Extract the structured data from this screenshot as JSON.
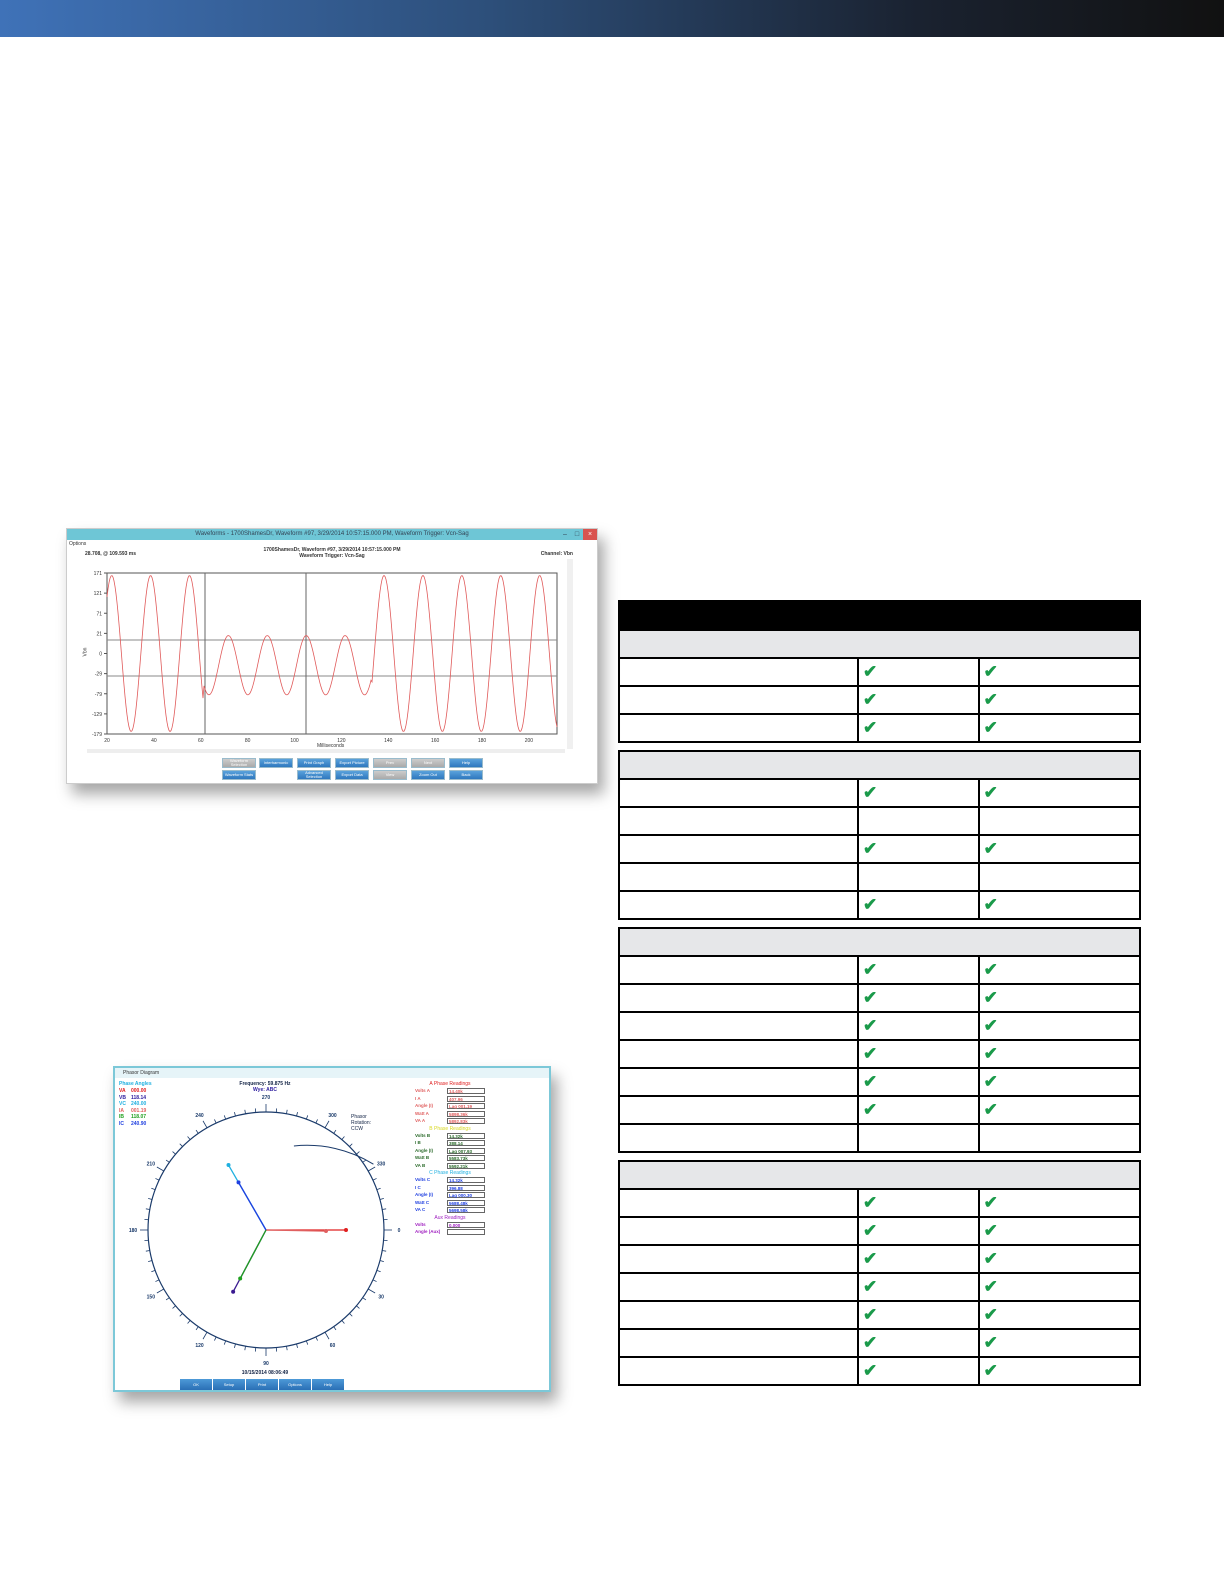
{
  "waveform_window": {
    "title": "Waveforms - 1700ShamesDr, Waveform #97, 3/29/2014 10:57:15.000 PM, Waveform Trigger: Vcn-Sag",
    "menu": "Options",
    "subtitle_line1": "1700ShamesDr, Waveform #97, 3/29/2014 10:57:15.000 PM",
    "subtitle_line2": "Waveform Trigger: Vcn-Sag",
    "cursor_readout": "28.708, @ 109.593 ms",
    "channel": "Channel: Vbn",
    "y_label": "Vbn",
    "x_label": "Milliseconds",
    "y_ticks": [
      "171",
      "121",
      "71",
      "21",
      "0",
      "-29",
      "-79",
      "-129",
      "-179"
    ],
    "x_ticks": [
      "20",
      "40",
      "60",
      "80",
      "100",
      "120",
      "140",
      "160",
      "180",
      "200"
    ],
    "line_color": "#e05a5a",
    "buttons": [
      "Waveform Selection",
      "Interharmonic",
      "Print Graph",
      "Export Picture",
      "Prev",
      "Next",
      "Help",
      "Waveform Stats",
      "Advanced Selection",
      "Export Data",
      "View",
      "Zoom Out",
      "Back"
    ]
  },
  "phasor_window": {
    "title": "Phasor Diagram",
    "frequency": "Frequency: 59.875 Hz",
    "config": "Wye: ABC",
    "phase_angles_title": "Phase Angles",
    "angles": [
      {
        "label": "VA",
        "value": "000.00",
        "color": "#e02020"
      },
      {
        "label": "VB",
        "value": "118.14",
        "color": "#3020a0"
      },
      {
        "label": "VC",
        "value": "240.00",
        "color": "#20b0e0"
      },
      {
        "label": "IA",
        "value": "001.19",
        "color": "#e06060"
      },
      {
        "label": "IB",
        "value": "118.07",
        "color": "#20a020"
      },
      {
        "label": "IC",
        "value": "240.90",
        "color": "#2040e0"
      }
    ],
    "rotation": "Phasor Rotation: CCW",
    "dial_labels": [
      "270",
      "300",
      "330",
      "0",
      "30",
      "60",
      "90",
      "120",
      "150",
      "180",
      "210",
      "240"
    ],
    "timestamp": "10/15/2014 08:06:49",
    "a_title": "A Phase Readings",
    "a": [
      [
        "Volts A",
        "14.40k"
      ],
      [
        "I A",
        "407.96"
      ],
      [
        "Angle (I)",
        "Lag 001.19"
      ],
      [
        "Watt A",
        "5898.36k"
      ],
      [
        "VA A",
        "5892.83k"
      ]
    ],
    "b_title": "B Phase Readings",
    "b": [
      [
        "Volts B",
        "14.32k"
      ],
      [
        "I B",
        "388.14"
      ],
      [
        "Angle (I)",
        "Lag 007.93"
      ],
      [
        "Watt B",
        "5583.73k"
      ],
      [
        "VA B",
        "5592.21k"
      ]
    ],
    "c_title": "C Phase Readings",
    "c": [
      [
        "Volts C",
        "14.32k"
      ],
      [
        "I C",
        "396.88"
      ],
      [
        "Angle (I)",
        "Lag 000.30"
      ],
      [
        "Watt C",
        "5688.48k"
      ],
      [
        "VA C",
        "5698.58k"
      ]
    ],
    "aux_title": "Aux Readings",
    "aux": [
      [
        "Volts",
        "0.000"
      ],
      [
        "Angle (Aux)",
        ""
      ]
    ],
    "buttons": [
      "OK",
      "Setup",
      "Print",
      "Options",
      "Help"
    ]
  },
  "table": {
    "check_color": "#1a9a4a",
    "sections": [
      {
        "rows": [
          [
            true,
            true
          ],
          [
            true,
            true
          ],
          [
            true,
            true
          ]
        ]
      },
      {
        "rows": [
          [
            true,
            true
          ],
          [
            false,
            false
          ],
          [
            true,
            true
          ],
          [
            false,
            false
          ],
          [
            true,
            true
          ]
        ]
      },
      {
        "rows": [
          [
            true,
            true
          ],
          [
            true,
            true
          ],
          [
            true,
            true
          ],
          [
            true,
            true
          ],
          [
            true,
            true
          ],
          [
            true,
            true
          ],
          [
            false,
            false
          ]
        ]
      },
      {
        "rows": [
          [
            true,
            true
          ],
          [
            true,
            true
          ],
          [
            true,
            true
          ],
          [
            true,
            true
          ],
          [
            true,
            true
          ],
          [
            true,
            true
          ],
          [
            true,
            true
          ]
        ]
      }
    ]
  }
}
